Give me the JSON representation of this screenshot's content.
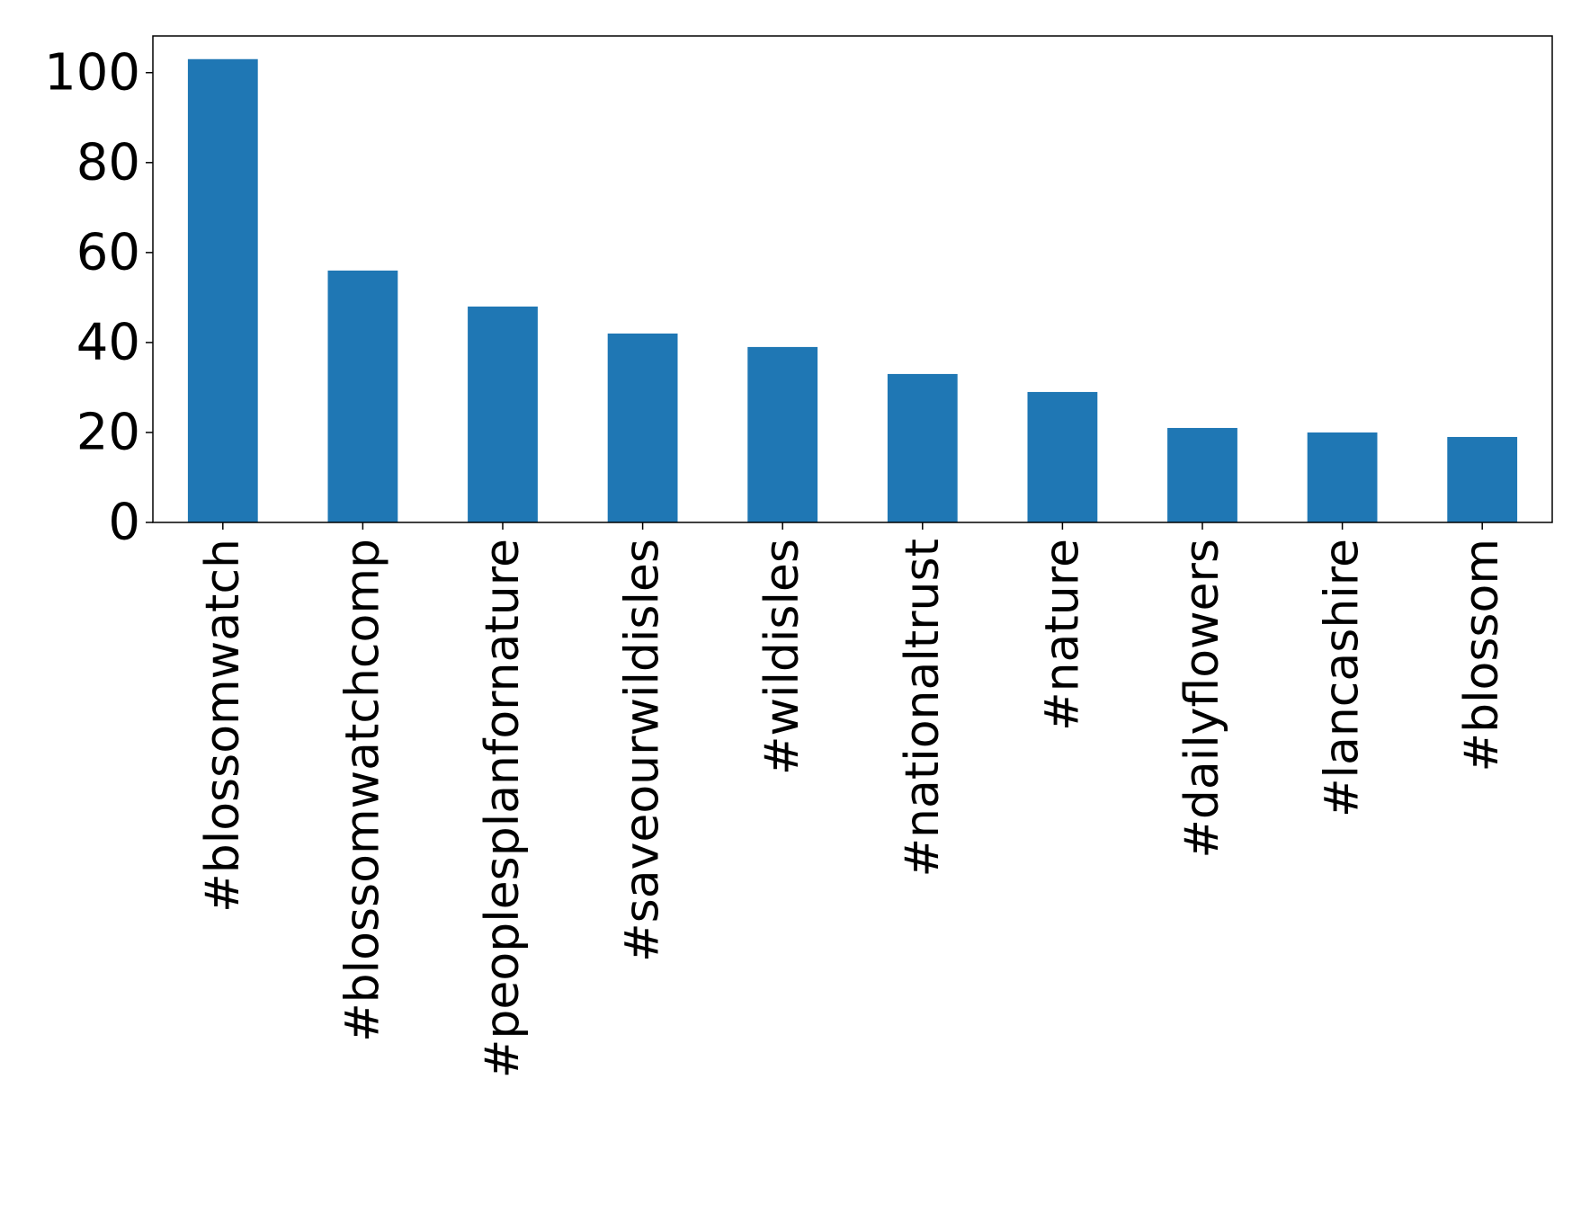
{
  "chart_data": {
    "type": "bar",
    "categories": [
      "#blossomwatch",
      "#blossomwatchcomp",
      "#peoplesplanfornature",
      "#saveourwildisles",
      "#wildisles",
      "#nationaltrust",
      "#nature",
      "#dailyflowers",
      "#lancashire",
      "#blossom"
    ],
    "values": [
      103,
      56,
      48,
      42,
      39,
      33,
      29,
      21,
      20,
      19
    ],
    "title": "",
    "xlabel": "",
    "ylabel": "",
    "ylim": [
      0,
      108.15
    ],
    "yticks": [
      0,
      20,
      40,
      60,
      80,
      100
    ],
    "grid": false,
    "legend": "none",
    "bar_color": "#1f77b4"
  }
}
